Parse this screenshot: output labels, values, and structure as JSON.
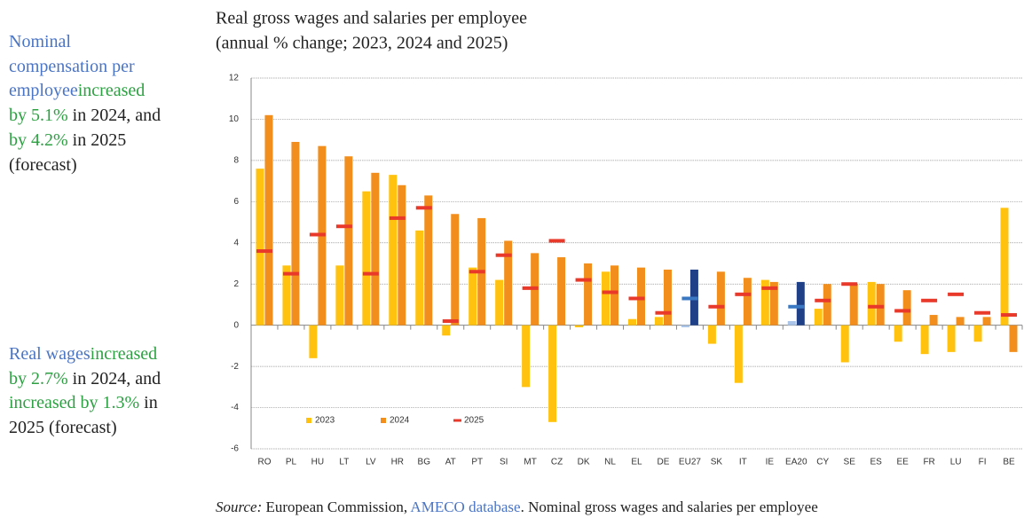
{
  "side_notes": [
    [
      {
        "text": "Nominal compensation per employee",
        "color": "#4a74c4"
      },
      {
        "text": "increased by 5.1%",
        "color": "#2ea043"
      },
      {
        "text": " in 2024, and ",
        "color": "#222222"
      },
      {
        "text": "by 4.2%",
        "color": "#2ea043"
      },
      {
        "text": " in 2025 (forecast)",
        "color": "#222222"
      }
    ],
    [
      {
        "text": "Real wages",
        "color": "#4a74c4"
      },
      {
        "text": "increased by 2.7%",
        "color": "#2ea043"
      },
      {
        "text": " in 2024, and ",
        "color": "#222222"
      },
      {
        "text": "increased by 1.3%",
        "color": "#2ea043"
      },
      {
        "text": " in 2025 (forecast)",
        "color": "#222222"
      }
    ]
  ],
  "source": [
    {
      "text": "Source:",
      "style": "italic",
      "color": "#222222"
    },
    {
      "text": " European Commission, ",
      "style": "normal",
      "color": "#222222"
    },
    {
      "text": "AMECO database",
      "style": "normal",
      "color": "#4a74c4"
    },
    {
      "text": ". Nominal gross wages and salaries per employee",
      "style": "normal",
      "color": "#222222"
    }
  ],
  "chart_data": {
    "type": "bar",
    "title": "Real gross wages and salaries per employee",
    "subtitle": "(annual % change; 2023, 2024 and 2025)",
    "categories": [
      "RO",
      "PL",
      "HU",
      "LT",
      "LV",
      "HR",
      "BG",
      "AT",
      "PT",
      "SI",
      "MT",
      "CZ",
      "DK",
      "NL",
      "EL",
      "DE",
      "EU27",
      "SK",
      "IT",
      "IE",
      "EA20",
      "CY",
      "SE",
      "ES",
      "EE",
      "FR",
      "LU",
      "FI",
      "BE"
    ],
    "series": [
      {
        "name": "2023",
        "mark": "bar",
        "color": "#ffc20e",
        "colors": [
          "#ffc20e",
          "#ffc20e",
          "#ffc20e",
          "#ffc20e",
          "#ffc20e",
          "#ffc20e",
          "#ffc20e",
          "#ffc20e",
          "#ffc20e",
          "#ffc20e",
          "#ffc20e",
          "#ffc20e",
          "#ffc20e",
          "#ffc20e",
          "#ffc20e",
          "#ffc20e",
          "#a9c4e8",
          "#ffc20e",
          "#ffc20e",
          "#ffc20e",
          "#a9c4e8",
          "#ffc20e",
          "#ffc20e",
          "#ffc20e",
          "#ffc20e",
          "#ffc20e",
          "#ffc20e",
          "#ffc20e",
          "#ffc20e"
        ],
        "values": [
          7.6,
          2.9,
          -1.6,
          2.9,
          6.5,
          7.3,
          4.6,
          -0.5,
          2.8,
          2.2,
          -3.0,
          -4.7,
          -0.1,
          2.6,
          0.3,
          0.4,
          -0.1,
          -0.9,
          -2.8,
          2.2,
          0.2,
          0.8,
          -1.8,
          2.1,
          -0.8,
          -1.4,
          -1.3,
          -0.8,
          5.7
        ]
      },
      {
        "name": "2024",
        "mark": "bar",
        "color": "#f28e1c",
        "colors": [
          "#f28e1c",
          "#f28e1c",
          "#f28e1c",
          "#f28e1c",
          "#f28e1c",
          "#f28e1c",
          "#f28e1c",
          "#f28e1c",
          "#f28e1c",
          "#f28e1c",
          "#f28e1c",
          "#f28e1c",
          "#f28e1c",
          "#f28e1c",
          "#f28e1c",
          "#f28e1c",
          "#1f3f86",
          "#f28e1c",
          "#f28e1c",
          "#f28e1c",
          "#1f3f86",
          "#f28e1c",
          "#f28e1c",
          "#f28e1c",
          "#f28e1c",
          "#f28e1c",
          "#f28e1c",
          "#f28e1c",
          "#f28e1c"
        ],
        "values": [
          10.2,
          8.9,
          8.7,
          8.2,
          7.4,
          6.8,
          6.3,
          5.4,
          5.2,
          4.1,
          3.5,
          3.3,
          3.0,
          2.9,
          2.8,
          2.7,
          2.7,
          2.6,
          2.3,
          2.1,
          2.1,
          2.0,
          2.0,
          2.0,
          1.7,
          0.5,
          0.4,
          0.4,
          -1.3
        ]
      },
      {
        "name": "2025",
        "mark": "dash",
        "color": "#e8392b",
        "colors": [
          "#e8392b",
          "#e8392b",
          "#e8392b",
          "#e8392b",
          "#e8392b",
          "#e8392b",
          "#e8392b",
          "#e8392b",
          "#e8392b",
          "#e8392b",
          "#e8392b",
          "#e8392b",
          "#e8392b",
          "#e8392b",
          "#e8392b",
          "#e8392b",
          "#3a78c3",
          "#e8392b",
          "#e8392b",
          "#e8392b",
          "#3a78c3",
          "#e8392b",
          "#e8392b",
          "#e8392b",
          "#e8392b",
          "#e8392b",
          "#e8392b",
          "#e8392b",
          "#e8392b"
        ],
        "values": [
          3.6,
          2.5,
          4.4,
          4.8,
          2.5,
          5.2,
          5.7,
          0.2,
          2.6,
          3.4,
          1.8,
          4.1,
          2.2,
          1.6,
          1.3,
          0.6,
          1.3,
          0.9,
          1.5,
          1.8,
          0.9,
          1.2,
          2.0,
          0.9,
          0.7,
          1.2,
          1.5,
          0.6,
          0.5
        ]
      }
    ],
    "ylim": [
      -6,
      12
    ],
    "yticks": [
      -6,
      -4,
      -2,
      0,
      2,
      4,
      6,
      8,
      10,
      12
    ],
    "grid": true,
    "legend": "bottom-left"
  }
}
